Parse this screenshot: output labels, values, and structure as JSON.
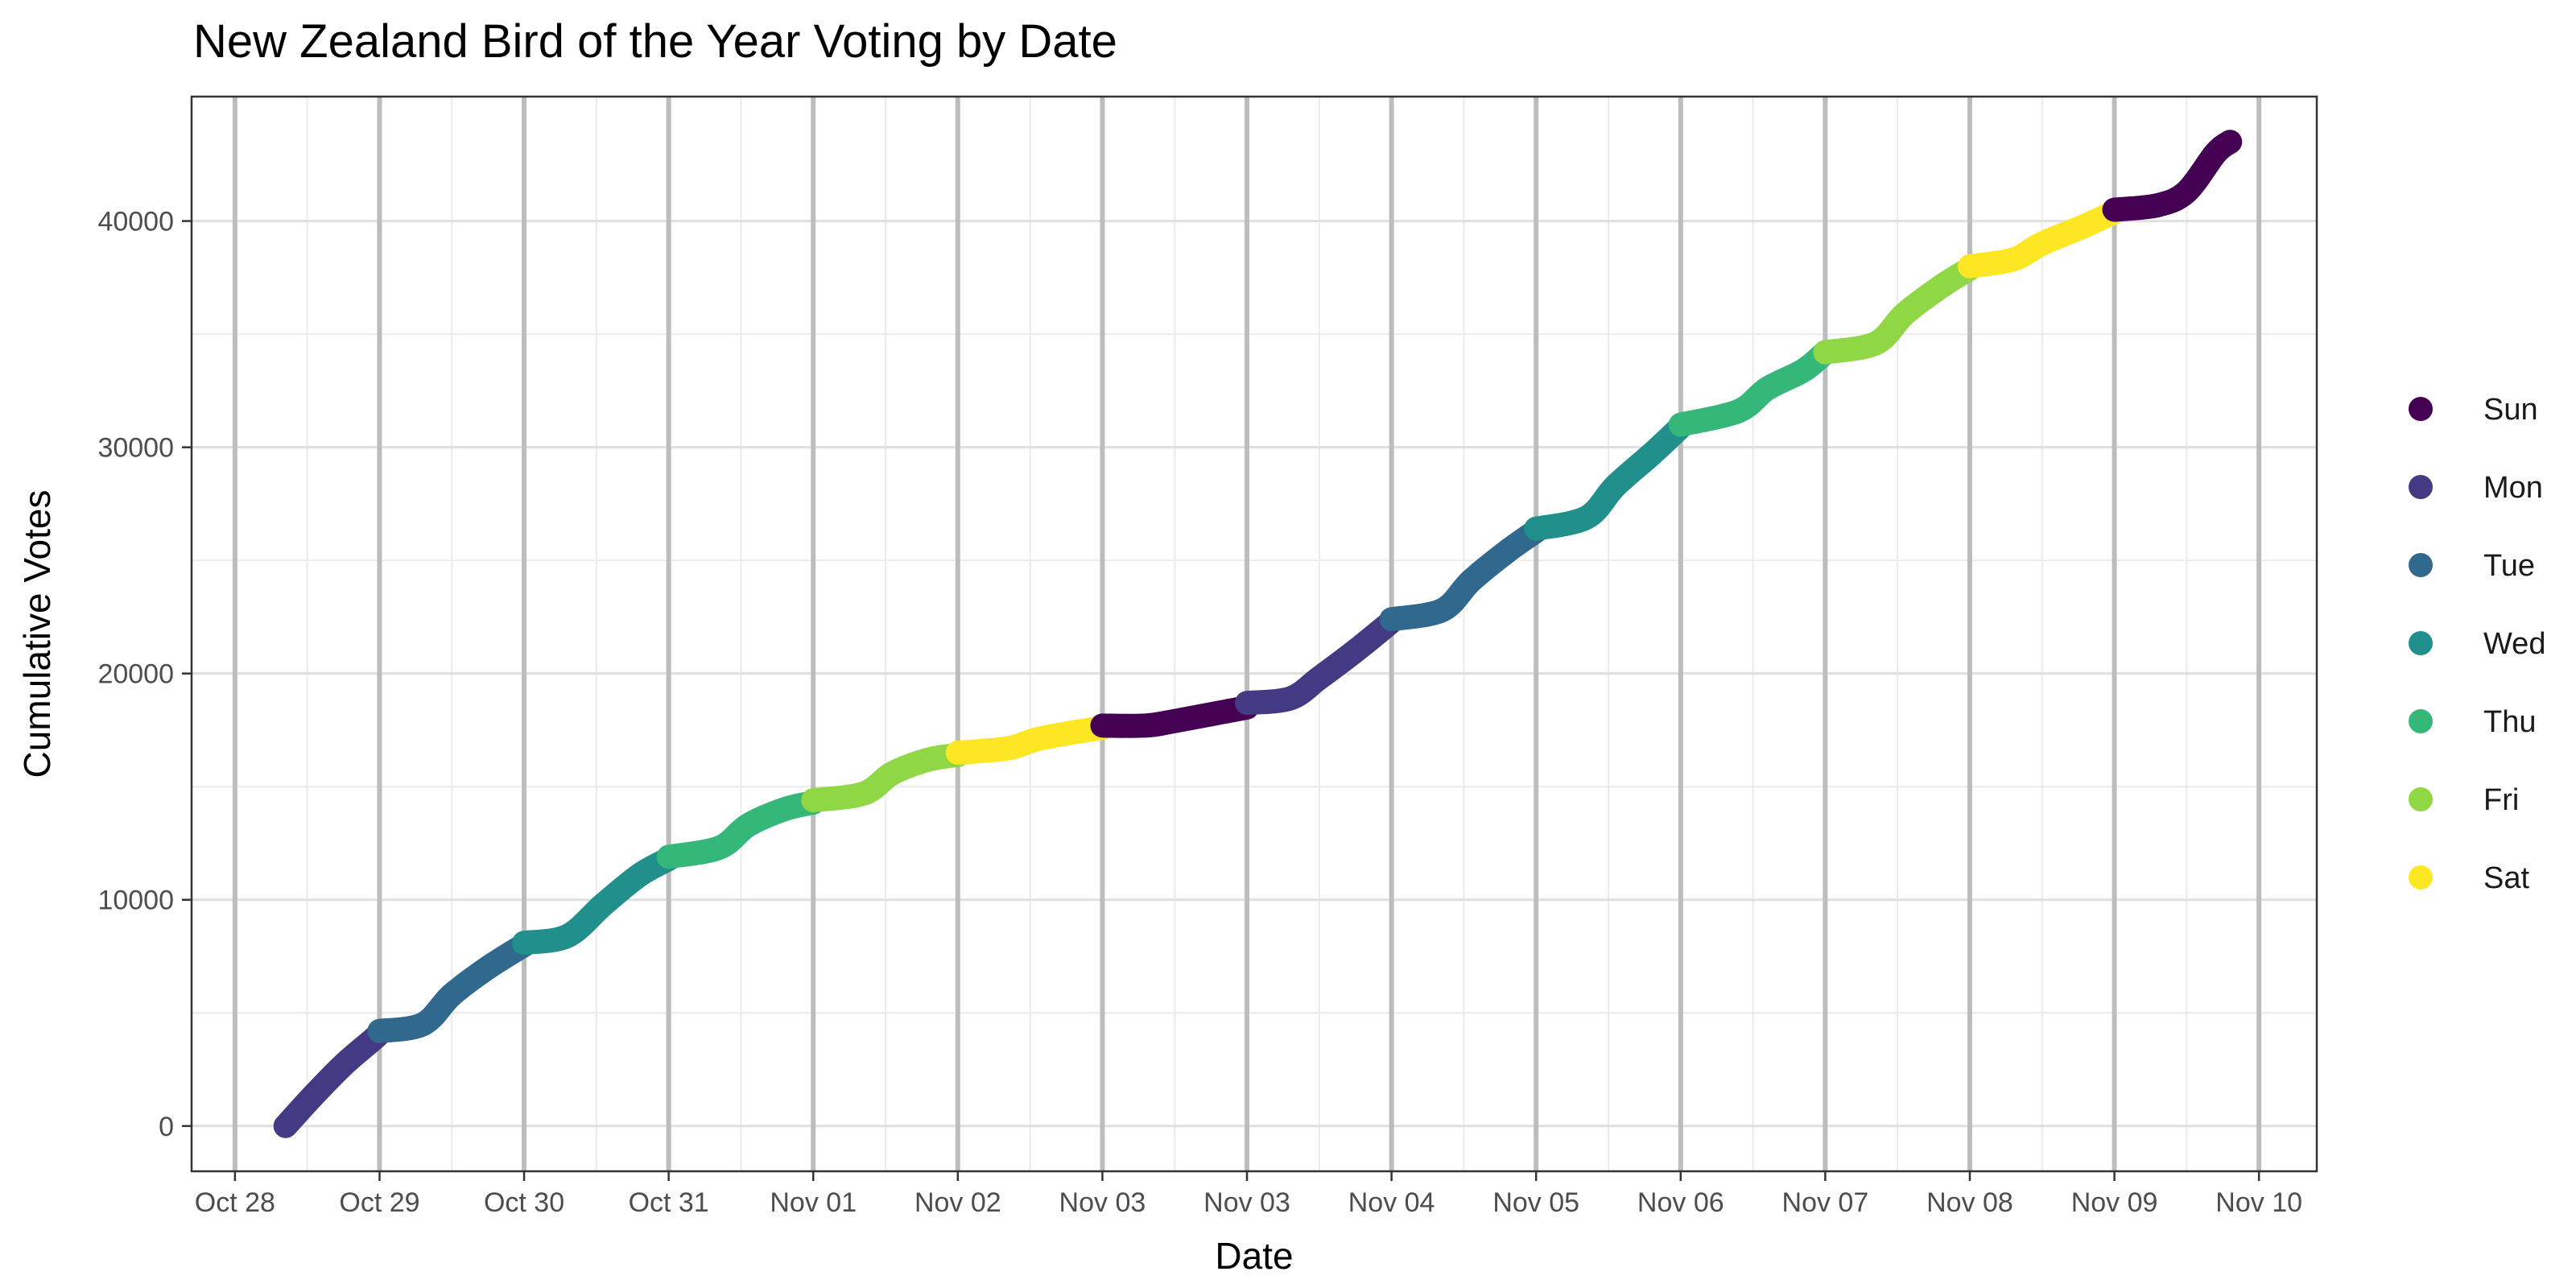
{
  "chart_data": {
    "type": "scatter",
    "title": "New Zealand Bird of the Year Voting by Date",
    "xlabel": "Date",
    "ylabel": "Cumulative Votes",
    "xlim": [
      -0.3,
      14.4
    ],
    "ylim": [
      -2000,
      45500
    ],
    "grid": true,
    "legend_position": "right",
    "x_ticks": [
      {
        "x": 0,
        "label": "Oct 28"
      },
      {
        "x": 1,
        "label": "Oct 29"
      },
      {
        "x": 2,
        "label": "Oct 30"
      },
      {
        "x": 3,
        "label": "Oct 31"
      },
      {
        "x": 4,
        "label": "Nov 01"
      },
      {
        "x": 5,
        "label": "Nov 02"
      },
      {
        "x": 6,
        "label": "Nov 03"
      },
      {
        "x": 7,
        "label": "Nov 03"
      },
      {
        "x": 8,
        "label": "Nov 04"
      },
      {
        "x": 9,
        "label": "Nov 05"
      },
      {
        "x": 10,
        "label": "Nov 06"
      },
      {
        "x": 11,
        "label": "Nov 07"
      },
      {
        "x": 12,
        "label": "Nov 08"
      },
      {
        "x": 13,
        "label": "Nov 09"
      },
      {
        "x": 14,
        "label": "Nov 10"
      }
    ],
    "y_ticks": [
      0,
      10000,
      20000,
      30000,
      40000
    ],
    "series": [
      {
        "name": "Sun",
        "color": "#440154",
        "points": [
          [
            6.0,
            17700
          ],
          [
            6.3,
            17700
          ],
          [
            6.5,
            17900
          ],
          [
            7.0,
            18500
          ],
          [
            13.0,
            40500
          ],
          [
            13.3,
            40700
          ],
          [
            13.5,
            41300
          ],
          [
            13.7,
            43000
          ],
          [
            13.8,
            43500
          ]
        ]
      },
      {
        "name": "Mon",
        "color": "#443A83",
        "points": [
          [
            0.35,
            0
          ],
          [
            0.55,
            1400
          ],
          [
            0.75,
            2700
          ],
          [
            0.95,
            3800
          ],
          [
            1.0,
            4100
          ],
          [
            7.0,
            18700
          ],
          [
            7.3,
            18900
          ],
          [
            7.5,
            19800
          ],
          [
            7.75,
            21000
          ],
          [
            8.0,
            22300
          ]
        ]
      },
      {
        "name": "Tue",
        "color": "#31688E",
        "points": [
          [
            1.0,
            4200
          ],
          [
            1.3,
            4500
          ],
          [
            1.5,
            5800
          ],
          [
            1.75,
            7000
          ],
          [
            2.0,
            8000
          ],
          [
            8.0,
            22400
          ],
          [
            8.35,
            22800
          ],
          [
            8.55,
            24100
          ],
          [
            8.8,
            25400
          ],
          [
            9.0,
            26300
          ]
        ]
      },
      {
        "name": "Wed",
        "color": "#21908C",
        "points": [
          [
            2.0,
            8100
          ],
          [
            2.3,
            8400
          ],
          [
            2.55,
            9800
          ],
          [
            2.8,
            11100
          ],
          [
            3.0,
            11800
          ],
          [
            9.0,
            26400
          ],
          [
            9.35,
            26900
          ],
          [
            9.55,
            28300
          ],
          [
            9.8,
            29700
          ],
          [
            10.0,
            30900
          ]
        ]
      },
      {
        "name": "Thu",
        "color": "#35B779",
        "points": [
          [
            3.0,
            11900
          ],
          [
            3.35,
            12300
          ],
          [
            3.55,
            13300
          ],
          [
            3.8,
            14000
          ],
          [
            4.0,
            14300
          ],
          [
            10.0,
            31000
          ],
          [
            10.4,
            31600
          ],
          [
            10.6,
            32600
          ],
          [
            10.85,
            33400
          ],
          [
            11.0,
            34200
          ]
        ]
      },
      {
        "name": "Fri",
        "color": "#8FD744",
        "points": [
          [
            4.0,
            14400
          ],
          [
            4.35,
            14700
          ],
          [
            4.55,
            15600
          ],
          [
            4.8,
            16200
          ],
          [
            5.0,
            16400
          ],
          [
            11.0,
            34200
          ],
          [
            11.35,
            34600
          ],
          [
            11.55,
            35900
          ],
          [
            11.8,
            37100
          ],
          [
            12.0,
            37900
          ]
        ]
      },
      {
        "name": "Sat",
        "color": "#FDE725",
        "points": [
          [
            5.0,
            16500
          ],
          [
            5.35,
            16700
          ],
          [
            5.55,
            17100
          ],
          [
            5.8,
            17400
          ],
          [
            6.0,
            17600
          ],
          [
            12.0,
            38000
          ],
          [
            12.3,
            38300
          ],
          [
            12.5,
            39000
          ],
          [
            12.8,
            39800
          ],
          [
            13.0,
            40400
          ]
        ]
      }
    ]
  }
}
